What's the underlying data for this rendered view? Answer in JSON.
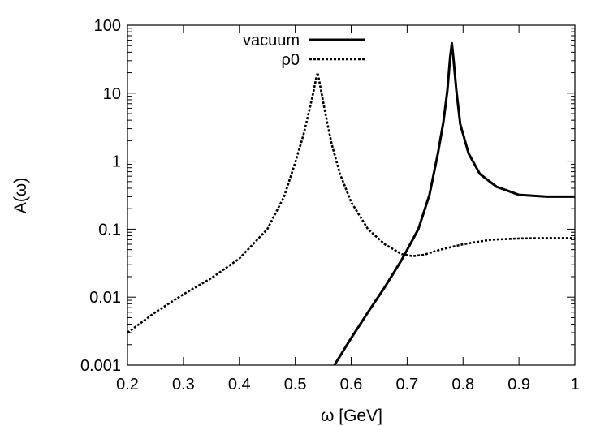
{
  "chart_data": {
    "type": "line",
    "xlabel": "ω [GeV]",
    "ylabel": "A(ω)",
    "xlim": [
      0.2,
      1.0
    ],
    "ylim": [
      0.001,
      100
    ],
    "yscale": "log",
    "grid": false,
    "legend_position": "top-center",
    "x_ticks": [
      "0.2",
      "0.3",
      "0.4",
      "0.5",
      "0.6",
      "0.7",
      "0.8",
      "0.9",
      "1"
    ],
    "y_ticks": [
      "0.001",
      "0.01",
      "0.1",
      "1",
      "10",
      "100"
    ],
    "series": [
      {
        "name": "vacuum",
        "style": "solid",
        "color": "#000000",
        "x": [
          0.57,
          0.6,
          0.63,
          0.66,
          0.69,
          0.72,
          0.74,
          0.755,
          0.765,
          0.772,
          0.777,
          0.78,
          0.783,
          0.788,
          0.795,
          0.81,
          0.83,
          0.86,
          0.9,
          0.95,
          1.0
        ],
        "y": [
          0.001,
          0.0025,
          0.006,
          0.014,
          0.035,
          0.1,
          0.32,
          1.3,
          3.8,
          11,
          34,
          54,
          32,
          11,
          3.5,
          1.3,
          0.65,
          0.42,
          0.32,
          0.3,
          0.3
        ]
      },
      {
        "name": "ρ0",
        "style": "dashed",
        "color": "#000000",
        "x": [
          0.2,
          0.25,
          0.3,
          0.35,
          0.4,
          0.45,
          0.48,
          0.5,
          0.515,
          0.525,
          0.532,
          0.537,
          0.54,
          0.543,
          0.548,
          0.555,
          0.565,
          0.58,
          0.6,
          0.63,
          0.66,
          0.69,
          0.71,
          0.73,
          0.76,
          0.8,
          0.85,
          0.9,
          0.95,
          1.0
        ],
        "y": [
          0.003,
          0.006,
          0.011,
          0.019,
          0.037,
          0.1,
          0.3,
          0.95,
          2.5,
          5.5,
          10,
          16,
          20,
          15,
          9,
          4.5,
          1.8,
          0.65,
          0.25,
          0.1,
          0.06,
          0.043,
          0.04,
          0.042,
          0.05,
          0.06,
          0.07,
          0.073,
          0.074,
          0.074
        ]
      }
    ]
  }
}
